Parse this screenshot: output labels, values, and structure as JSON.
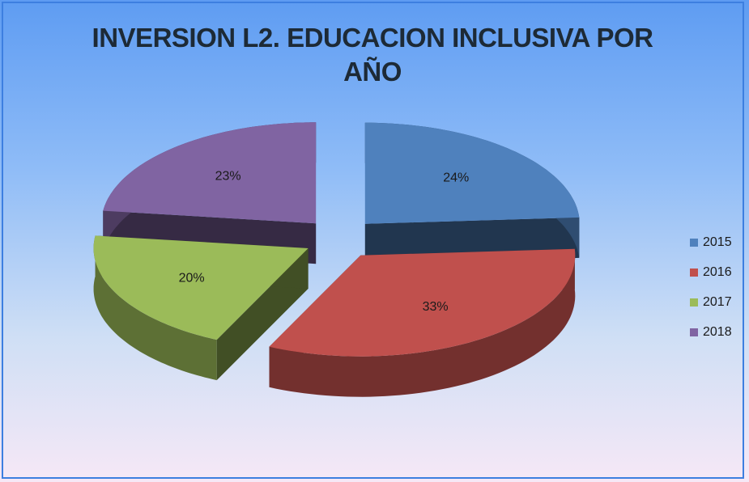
{
  "chart_data": {
    "type": "pie3d",
    "title": "INVERSION L2. EDUCACION INCLUSIVA POR AÑO",
    "categories": [
      "2015",
      "2016",
      "2017",
      "2018"
    ],
    "values": [
      24,
      33,
      20,
      23
    ],
    "value_labels": [
      "24%",
      "33%",
      "20%",
      "23%"
    ],
    "colors": [
      "#4f81bd",
      "#c0504d",
      "#9bbb59",
      "#8064a2"
    ],
    "legend": "right"
  }
}
